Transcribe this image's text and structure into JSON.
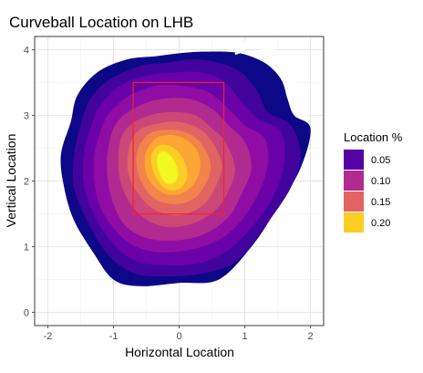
{
  "chart_data": {
    "type": "heatmap",
    "title": "Curveball Location on LHB",
    "xlabel": "Horizontal Location",
    "ylabel": "Vertical Location",
    "xlim": [
      -2.2,
      2.2
    ],
    "ylim": [
      -0.2,
      4.2
    ],
    "x_ticks": [
      -2,
      -1,
      0,
      1,
      2
    ],
    "y_ticks": [
      0,
      1,
      2,
      3,
      4
    ],
    "grid": true,
    "strike_zone": {
      "x": [
        -0.7,
        0.68
      ],
      "y": [
        1.5,
        3.5
      ],
      "color": "#e8282e"
    },
    "legend": {
      "title": "Location %",
      "position": "right",
      "entries": [
        {
          "label": "0.05",
          "color": "#5402a3"
        },
        {
          "label": "0.10",
          "color": "#b12a90"
        },
        {
          "label": "0.15",
          "color": "#e16462"
        },
        {
          "label": "0.20",
          "color": "#fccd25"
        }
      ]
    },
    "levels": [
      {
        "level": 0.02,
        "color": "#0d0887"
      },
      {
        "level": 0.04,
        "color": "#42039d"
      },
      {
        "level": 0.06,
        "color": "#6a00a8"
      },
      {
        "level": 0.08,
        "color": "#8f0da4"
      },
      {
        "level": 0.1,
        "color": "#b12a90"
      },
      {
        "level": 0.12,
        "color": "#cc4778"
      },
      {
        "level": 0.14,
        "color": "#e16462"
      },
      {
        "level": 0.16,
        "color": "#f2844b"
      },
      {
        "level": 0.18,
        "color": "#fca636"
      },
      {
        "level": 0.2,
        "color": "#fcce25"
      },
      {
        "level": 0.22,
        "color": "#f0f921"
      }
    ],
    "contour_outlines": [
      [
        [
          -1.65,
          2.9
        ],
        [
          -1.55,
          3.3
        ],
        [
          -1.25,
          3.65
        ],
        [
          -0.8,
          3.85
        ],
        [
          -0.35,
          3.9
        ],
        [
          0.05,
          3.95
        ],
        [
          0.4,
          3.97
        ],
        [
          0.9,
          3.95
        ],
        [
          1.3,
          3.8
        ],
        [
          1.55,
          3.55
        ],
        [
          1.65,
          3.25
        ],
        [
          1.75,
          3.0
        ],
        [
          2.0,
          2.8
        ],
        [
          1.85,
          2.2
        ],
        [
          1.5,
          1.6
        ],
        [
          1.1,
          1.0
        ],
        [
          0.6,
          0.5
        ],
        [
          0.0,
          0.45
        ],
        [
          -0.6,
          0.4
        ],
        [
          -1.0,
          0.5
        ],
        [
          -1.3,
          0.9
        ],
        [
          -1.6,
          1.4
        ],
        [
          -1.75,
          1.9
        ],
        [
          -1.8,
          2.4
        ]
      ],
      [
        [
          -1.5,
          2.85
        ],
        [
          -1.35,
          3.25
        ],
        [
          -1.05,
          3.55
        ],
        [
          -0.6,
          3.75
        ],
        [
          -0.2,
          3.8
        ],
        [
          0.2,
          3.85
        ],
        [
          0.6,
          3.8
        ],
        [
          0.95,
          3.65
        ],
        [
          1.2,
          3.35
        ],
        [
          1.35,
          3.05
        ],
        [
          1.7,
          2.85
        ],
        [
          1.85,
          2.4
        ],
        [
          1.7,
          1.9
        ],
        [
          1.3,
          1.3
        ],
        [
          0.9,
          0.8
        ],
        [
          0.4,
          0.6
        ],
        [
          -0.2,
          0.55
        ],
        [
          -0.7,
          0.6
        ],
        [
          -1.1,
          0.9
        ],
        [
          -1.4,
          1.4
        ],
        [
          -1.6,
          1.9
        ],
        [
          -1.6,
          2.4
        ]
      ],
      [
        [
          -1.35,
          2.8
        ],
        [
          -1.2,
          3.15
        ],
        [
          -0.9,
          3.45
        ],
        [
          -0.5,
          3.6
        ],
        [
          -0.1,
          3.65
        ],
        [
          0.35,
          3.65
        ],
        [
          0.7,
          3.5
        ],
        [
          0.95,
          3.2
        ],
        [
          1.2,
          2.95
        ],
        [
          1.55,
          2.75
        ],
        [
          1.6,
          2.3
        ],
        [
          1.45,
          1.8
        ],
        [
          1.15,
          1.35
        ],
        [
          0.75,
          0.95
        ],
        [
          0.3,
          0.75
        ],
        [
          -0.25,
          0.72
        ],
        [
          -0.7,
          0.8
        ],
        [
          -1.05,
          1.1
        ],
        [
          -1.3,
          1.5
        ],
        [
          -1.45,
          1.95
        ],
        [
          -1.45,
          2.4
        ]
      ],
      [
        [
          -1.2,
          2.75
        ],
        [
          -1.05,
          3.05
        ],
        [
          -0.75,
          3.3
        ],
        [
          -0.35,
          3.45
        ],
        [
          0.05,
          3.45
        ],
        [
          0.45,
          3.35
        ],
        [
          0.75,
          3.1
        ],
        [
          1.0,
          2.85
        ],
        [
          1.3,
          2.65
        ],
        [
          1.35,
          2.25
        ],
        [
          1.2,
          1.8
        ],
        [
          0.95,
          1.4
        ],
        [
          0.6,
          1.1
        ],
        [
          0.15,
          0.95
        ],
        [
          -0.35,
          0.92
        ],
        [
          -0.75,
          1.05
        ],
        [
          -1.05,
          1.35
        ],
        [
          -1.25,
          1.75
        ],
        [
          -1.3,
          2.3
        ]
      ],
      [
        [
          -1.05,
          2.65
        ],
        [
          -0.9,
          2.95
        ],
        [
          -0.6,
          3.15
        ],
        [
          -0.25,
          3.25
        ],
        [
          0.15,
          3.25
        ],
        [
          0.5,
          3.1
        ],
        [
          0.75,
          2.85
        ],
        [
          1.0,
          2.6
        ],
        [
          1.1,
          2.2
        ],
        [
          0.95,
          1.8
        ],
        [
          0.75,
          1.45
        ],
        [
          0.4,
          1.2
        ],
        [
          0.0,
          1.1
        ],
        [
          -0.45,
          1.12
        ],
        [
          -0.8,
          1.3
        ],
        [
          -1.0,
          1.65
        ],
        [
          -1.1,
          2.15
        ]
      ],
      [
        [
          -0.9,
          2.6
        ],
        [
          -0.75,
          2.85
        ],
        [
          -0.45,
          3.0
        ],
        [
          -0.1,
          3.05
        ],
        [
          0.25,
          3.0
        ],
        [
          0.5,
          2.8
        ],
        [
          0.7,
          2.6
        ],
        [
          0.85,
          2.2
        ],
        [
          0.75,
          1.85
        ],
        [
          0.55,
          1.55
        ],
        [
          0.2,
          1.35
        ],
        [
          -0.2,
          1.3
        ],
        [
          -0.55,
          1.45
        ],
        [
          -0.8,
          1.75
        ],
        [
          -0.92,
          2.15
        ]
      ],
      [
        [
          -0.75,
          2.55
        ],
        [
          -0.6,
          2.78
        ],
        [
          -0.3,
          2.88
        ],
        [
          0.0,
          2.9
        ],
        [
          0.3,
          2.8
        ],
        [
          0.5,
          2.6
        ],
        [
          0.65,
          2.25
        ],
        [
          0.55,
          1.9
        ],
        [
          0.35,
          1.62
        ],
        [
          0.0,
          1.48
        ],
        [
          -0.35,
          1.55
        ],
        [
          -0.62,
          1.8
        ],
        [
          -0.78,
          2.15
        ]
      ],
      [
        [
          -0.62,
          2.5
        ],
        [
          -0.45,
          2.72
        ],
        [
          -0.15,
          2.78
        ],
        [
          0.15,
          2.72
        ],
        [
          0.35,
          2.55
        ],
        [
          0.48,
          2.25
        ],
        [
          0.4,
          1.95
        ],
        [
          0.2,
          1.72
        ],
        [
          -0.1,
          1.65
        ],
        [
          -0.4,
          1.75
        ],
        [
          -0.58,
          2.0
        ],
        [
          -0.65,
          2.25
        ]
      ],
      [
        [
          -0.5,
          2.45
        ],
        [
          -0.35,
          2.65
        ],
        [
          -0.1,
          2.7
        ],
        [
          0.12,
          2.62
        ],
        [
          0.28,
          2.45
        ],
        [
          0.32,
          2.2
        ],
        [
          0.22,
          1.95
        ],
        [
          0.0,
          1.8
        ],
        [
          -0.25,
          1.82
        ],
        [
          -0.45,
          2.0
        ],
        [
          -0.52,
          2.2
        ]
      ],
      [
        [
          -0.42,
          2.42
        ],
        [
          -0.28,
          2.55
        ],
        [
          -0.08,
          2.5
        ],
        [
          0.08,
          2.3
        ],
        [
          0.12,
          2.05
        ],
        [
          0.0,
          1.88
        ],
        [
          -0.2,
          1.88
        ],
        [
          -0.35,
          2.05
        ],
        [
          -0.42,
          2.25
        ]
      ],
      [
        [
          -0.32,
          2.4
        ],
        [
          -0.22,
          2.45
        ],
        [
          -0.1,
          2.35
        ],
        [
          -0.02,
          2.15
        ],
        [
          -0.05,
          2.0
        ],
        [
          -0.18,
          1.96
        ],
        [
          -0.28,
          2.08
        ],
        [
          -0.33,
          2.25
        ]
      ]
    ],
    "blank_regions": [
      [
        [
          0.85,
          3.93
        ],
        [
          1.0,
          3.99
        ],
        [
          1.05,
          4.1
        ],
        [
          0.95,
          4.12
        ]
      ],
      [
        [
          1.25,
          3.98
        ],
        [
          1.45,
          3.85
        ],
        [
          1.6,
          3.6
        ],
        [
          1.75,
          3.45
        ],
        [
          1.8,
          3.5
        ],
        [
          1.7,
          3.72
        ],
        [
          1.5,
          3.95
        ],
        [
          1.35,
          4.05
        ]
      ],
      [
        [
          1.7,
          3.2
        ],
        [
          1.8,
          3.0
        ],
        [
          1.95,
          2.95
        ],
        [
          1.9,
          3.15
        ],
        [
          1.78,
          3.28
        ]
      ]
    ]
  }
}
